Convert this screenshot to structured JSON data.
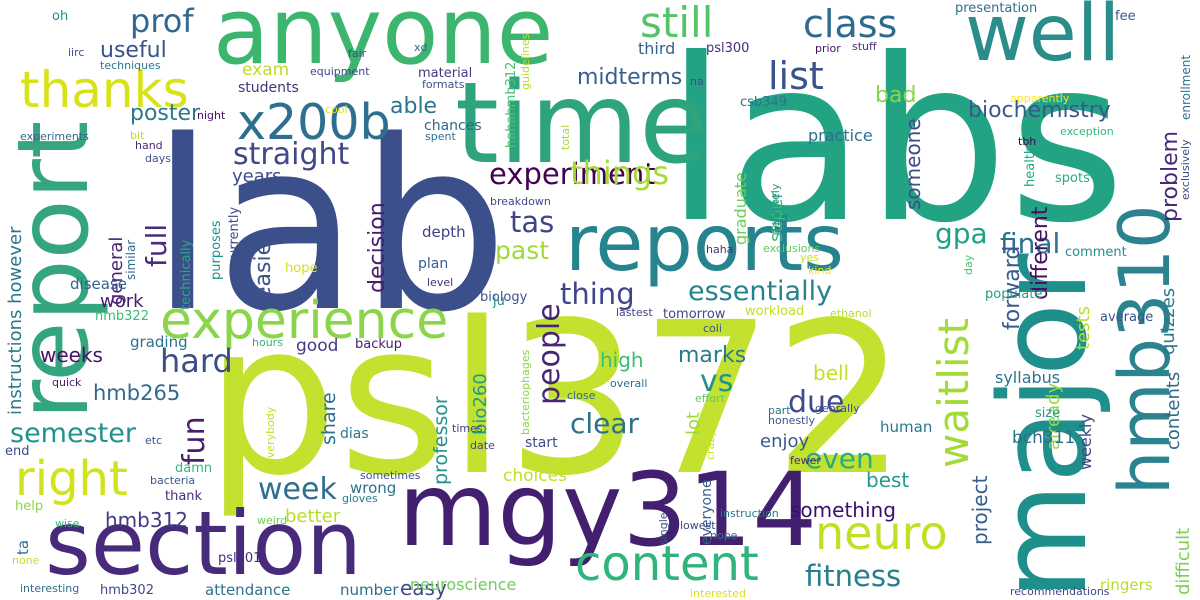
{
  "words": [
    {
      "text": "lab",
      "color": "#3b4f8a"
    },
    {
      "text": "labs",
      "color": "#22a384"
    },
    {
      "text": "psl372",
      "color": "#c3e22f"
    },
    {
      "text": "time",
      "color": "#2da37e"
    },
    {
      "text": "anyone",
      "color": "#3cb66f"
    },
    {
      "text": "report",
      "color": "#34a57f"
    },
    {
      "text": "major",
      "color": "#1f8f8c"
    },
    {
      "text": "mgy314",
      "color": "#42206f"
    },
    {
      "text": "section",
      "color": "#472a7a"
    },
    {
      "text": "reports",
      "color": "#25848e"
    },
    {
      "text": "well",
      "color": "#2a8d8a"
    },
    {
      "text": "hmb310",
      "color": "#2a838e"
    },
    {
      "text": "experience",
      "color": "#8ad549"
    },
    {
      "text": "x200b",
      "color": "#2d6f8e"
    },
    {
      "text": "thanks",
      "color": "#d8e219"
    },
    {
      "text": "content",
      "color": "#2fb47c"
    },
    {
      "text": "neuro",
      "color": "#c2df23"
    },
    {
      "text": "waitlist",
      "color": "#a2da37"
    },
    {
      "text": "right",
      "color": "#d2e21b"
    },
    {
      "text": "still",
      "color": "#52c569"
    },
    {
      "text": "class",
      "color": "#2f6b8e"
    },
    {
      "text": "list",
      "color": "#3b528b"
    },
    {
      "text": "prof",
      "color": "#31688e"
    },
    {
      "text": "straight",
      "color": "#3f4889"
    },
    {
      "text": "experiment",
      "color": "#440154"
    },
    {
      "text": "essentially",
      "color": "#25838e"
    },
    {
      "text": "things",
      "color": "#a5db36"
    },
    {
      "text": "thing",
      "color": "#3f4788"
    },
    {
      "text": "tas",
      "color": "#414487"
    },
    {
      "text": "past",
      "color": "#a0da39"
    },
    {
      "text": "gpa",
      "color": "#1fa188"
    },
    {
      "text": "final",
      "color": "#2c728e"
    },
    {
      "text": "full",
      "color": "#472d7b"
    },
    {
      "text": "hard",
      "color": "#3e4c8a"
    },
    {
      "text": "fun",
      "color": "#481f70"
    },
    {
      "text": "semester",
      "color": "#20928c"
    },
    {
      "text": "week",
      "color": "#2e6e8e"
    },
    {
      "text": "fitness",
      "color": "#277f8e"
    },
    {
      "text": "due",
      "color": "#3e4a89"
    },
    {
      "text": "vs",
      "color": "#20928c"
    },
    {
      "text": "even",
      "color": "#27ad81"
    },
    {
      "text": "marks",
      "color": "#297a8e"
    },
    {
      "text": "people",
      "color": "#482576"
    },
    {
      "text": "clear",
      "color": "#2d708e"
    },
    {
      "text": "useful",
      "color": "#3a538b"
    },
    {
      "text": "thanks",
      "color": "#d8e219"
    },
    {
      "text": "exam",
      "color": "#bade28"
    },
    {
      "text": "able",
      "color": "#2c738e"
    },
    {
      "text": "poster",
      "color": "#2a778e"
    },
    {
      "text": "midterms",
      "color": "#355f8d"
    },
    {
      "text": "bad",
      "color": "#8bd646"
    },
    {
      "text": "biochemistry",
      "color": "#38598c"
    },
    {
      "text": "problem",
      "color": "#482878"
    },
    {
      "text": "someone",
      "color": "#3d4e8a"
    },
    {
      "text": "different",
      "color": "#471063"
    },
    {
      "text": "forward",
      "color": "#375b8d"
    },
    {
      "text": "decision",
      "color": "#481c6e"
    },
    {
      "text": "easier",
      "color": "#3b528b"
    },
    {
      "text": "years",
      "color": "#3e4c8a"
    },
    {
      "text": "general",
      "color": "#482374"
    },
    {
      "text": "experiment",
      "color": "#440154"
    },
    {
      "text": "super",
      "color": "#3bbb75"
    },
    {
      "text": "graduate",
      "color": "#6ccd5a"
    },
    {
      "text": "practice",
      "color": "#2d708e"
    },
    {
      "text": "third",
      "color": "#34618d"
    },
    {
      "text": "material",
      "color": "#443a83"
    },
    {
      "text": "students",
      "color": "#46327e"
    },
    {
      "text": "chances",
      "color": "#31688e"
    },
    {
      "text": "presentation",
      "color": "#2e6f8e"
    },
    {
      "text": "fee",
      "color": "#38598c"
    },
    {
      "text": "psl300",
      "color": "#472a7a"
    },
    {
      "text": "csb349",
      "color": "#2c728e"
    },
    {
      "text": "hahahmb312",
      "color": "#4ac16d"
    },
    {
      "text": "prior",
      "color": "#471365"
    },
    {
      "text": "stuff",
      "color": "#46307e"
    },
    {
      "text": "apparently",
      "color": "#fde725"
    },
    {
      "text": "enrollment",
      "color": "#2c728e"
    },
    {
      "text": "exception",
      "color": "#35b779"
    },
    {
      "text": "exclusively",
      "color": "#3e4989"
    },
    {
      "text": "tbh",
      "color": "#440154"
    },
    {
      "text": "health",
      "color": "#22a884"
    },
    {
      "text": "spots",
      "color": "#27ad81"
    },
    {
      "text": "comment",
      "color": "#21918c"
    },
    {
      "text": "populate",
      "color": "#1fa088"
    },
    {
      "text": "average",
      "color": "#3b528b"
    },
    {
      "text": "quizzes",
      "color": "#2a788e"
    },
    {
      "text": "contents",
      "color": "#31688e"
    },
    {
      "text": "difficult",
      "color": "#7ad151"
    },
    {
      "text": "tests",
      "color": "#b5de2b"
    },
    {
      "text": "already",
      "color": "#95d840"
    },
    {
      "text": "weekly",
      "color": "#3e4989"
    },
    {
      "text": "project",
      "color": "#355f8d"
    },
    {
      "text": "syllabus",
      "color": "#2b748e"
    },
    {
      "text": "bch311",
      "color": "#2e6e8e"
    },
    {
      "text": "enjoy",
      "color": "#38598c"
    },
    {
      "text": "bell",
      "color": "#c2df23"
    },
    {
      "text": "best",
      "color": "#1f9e89"
    },
    {
      "text": "something",
      "color": "#3b0f70"
    },
    {
      "text": "better",
      "color": "#bade28"
    },
    {
      "text": "choices",
      "color": "#c0df25"
    },
    {
      "text": "share",
      "color": "#2d708e"
    },
    {
      "text": "professor",
      "color": "#1f948c"
    },
    {
      "text": "bio260",
      "color": "#1e9b8a"
    },
    {
      "text": "high",
      "color": "#3dbc74"
    },
    {
      "text": "lot",
      "color": "#a0da39"
    },
    {
      "text": "tomorrow",
      "color": "#3e4a89"
    },
    {
      "text": "workload",
      "color": "#c0df25"
    },
    {
      "text": "definitely",
      "color": "#21918c"
    },
    {
      "text": "exclusions",
      "color": "#5ec962"
    },
    {
      "text": "haha",
      "color": "#46307e"
    },
    {
      "text": "yes",
      "color": "#c8e020"
    },
    {
      "text": "kind",
      "color": "#f1e51d"
    },
    {
      "text": "day",
      "color": "#4ac16d"
    },
    {
      "text": "ethanol",
      "color": "#b5de2b"
    },
    {
      "text": "coli",
      "color": "#3b528b"
    },
    {
      "text": "lastest",
      "color": "#414487"
    },
    {
      "text": "instructions however",
      "color": "#2a788e"
    },
    {
      "text": "weeks",
      "color": "#471365"
    },
    {
      "text": "work",
      "color": "#481a6c"
    },
    {
      "text": "grading",
      "color": "#2c728e"
    },
    {
      "text": "hmb265",
      "color": "#306a8e"
    },
    {
      "text": "hmb322",
      "color": "#3bbb75"
    },
    {
      "text": "disease",
      "color": "#355f8d"
    },
    {
      "text": "similar",
      "color": "#306a8e"
    },
    {
      "text": "technically",
      "color": "#25ab82"
    },
    {
      "text": "purposes",
      "color": "#218f8d"
    },
    {
      "text": "currently",
      "color": "#3e4a89"
    },
    {
      "text": "easy",
      "color": "#3f4889"
    },
    {
      "text": "hmb312",
      "color": "#443983"
    },
    {
      "text": "neuroscience",
      "color": "#6ccd5a"
    },
    {
      "text": "ta",
      "color": "#2e6f8e"
    },
    {
      "text": "help",
      "color": "#8fd744"
    },
    {
      "text": "end",
      "color": "#3f4889"
    },
    {
      "text": "damn",
      "color": "#35b779"
    },
    {
      "text": "bacteria",
      "color": "#38598c"
    },
    {
      "text": "thank",
      "color": "#472a7a"
    },
    {
      "text": "good",
      "color": "#443983"
    },
    {
      "text": "backup",
      "color": "#482173"
    },
    {
      "text": "hours",
      "color": "#2fb47c"
    },
    {
      "text": "etc",
      "color": "#3b528b"
    },
    {
      "text": "quick",
      "color": "#481c6e"
    },
    {
      "text": "dias",
      "color": "#2a788e"
    },
    {
      "text": "wrong",
      "color": "#2c718e"
    },
    {
      "text": "sometimes",
      "color": "#3b528b"
    },
    {
      "text": "gloves",
      "color": "#287d8e"
    },
    {
      "text": "weird",
      "color": "#6ccd5a"
    },
    {
      "text": "wise",
      "color": "#35b779"
    },
    {
      "text": "none",
      "color": "#c8e020"
    },
    {
      "text": "psl301",
      "color": "#472c7a"
    },
    {
      "text": "hmb302",
      "color": "#3f4889"
    },
    {
      "text": "attendance",
      "color": "#2c738e"
    },
    {
      "text": "number",
      "color": "#2e6e8e"
    },
    {
      "text": "interesting",
      "color": "#2e6f8e"
    },
    {
      "text": "interested",
      "color": "#d5e21a"
    },
    {
      "text": "recommendations",
      "color": "#3e4989"
    },
    {
      "text": "ringers",
      "color": "#b5de2b"
    },
    {
      "text": "size",
      "color": "#1f9a8a"
    },
    {
      "text": "human",
      "color": "#2a788e"
    },
    {
      "text": "fewer",
      "color": "#482979"
    },
    {
      "text": "honestly",
      "color": "#3b528b"
    },
    {
      "text": "genrally",
      "color": "#3e4c8a"
    },
    {
      "text": "part",
      "color": "#2a788e"
    },
    {
      "text": "effort",
      "color": "#5ec962"
    },
    {
      "text": "overall",
      "color": "#2e6e8e"
    },
    {
      "text": "close",
      "color": "#306a8e"
    },
    {
      "text": "times",
      "color": "#414487"
    },
    {
      "text": "date",
      "color": "#404688"
    },
    {
      "text": "start",
      "color": "#3e4c8a"
    },
    {
      "text": "crazy",
      "color": "#cae11f"
    },
    {
      "text": "everyone",
      "color": "#355e8d"
    },
    {
      "text": "nope",
      "color": "#2c728e"
    },
    {
      "text": "single",
      "color": "#39568c"
    },
    {
      "text": "lowest",
      "color": "#3e4989"
    },
    {
      "text": "instruction",
      "color": "#2a788e"
    },
    {
      "text": "bacteriophages",
      "color": "#8bd646"
    },
    {
      "text": "everybody",
      "color": "#c2df23"
    },
    {
      "text": "biology",
      "color": "#3b528b"
    },
    {
      "text": "level",
      "color": "#472d7b"
    },
    {
      "text": "plan",
      "color": "#355f8d"
    },
    {
      "text": "depth",
      "color": "#424086"
    },
    {
      "text": "breakdown",
      "color": "#404688"
    },
    {
      "text": "hope",
      "color": "#d8e219"
    },
    {
      "text": "ju",
      "color": "#21918c"
    },
    {
      "text": "oh",
      "color": "#228c8d"
    },
    {
      "text": "iirc",
      "color": "#3d4e8a"
    },
    {
      "text": "techniques",
      "color": "#2a768e"
    },
    {
      "text": "experiments",
      "color": "#306a8e"
    },
    {
      "text": "hand",
      "color": "#472c7a"
    },
    {
      "text": "bit",
      "color": "#bade28"
    },
    {
      "text": "days",
      "color": "#3b528b"
    },
    {
      "text": "night",
      "color": "#471063"
    },
    {
      "text": "cool",
      "color": "#dde318"
    },
    {
      "text": "equipment",
      "color": "#414487"
    },
    {
      "text": "fair",
      "color": "#3e4989"
    },
    {
      "text": "xd",
      "color": "#2d708e"
    },
    {
      "text": "guidelines",
      "color": "#b5de2b"
    },
    {
      "text": "formats",
      "color": "#3b528b"
    },
    {
      "text": "na",
      "color": "#3e4c8a"
    },
    {
      "text": "spent",
      "color": "#2d708e"
    },
    {
      "text": "total",
      "color": "#a8db34"
    }
  ]
}
